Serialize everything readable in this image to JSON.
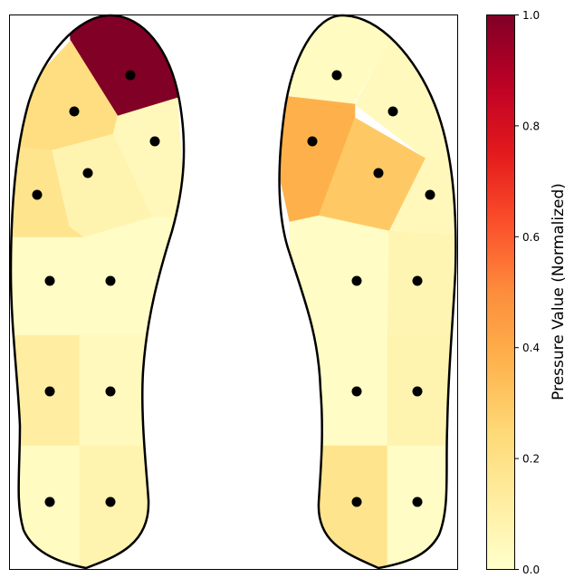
{
  "chart_data": {
    "type": "heatmap",
    "title": "",
    "xlabel": "",
    "ylabel": "",
    "colormap": "YlOrRd",
    "colors": {
      "outline": "#000000",
      "sensor": "#000000",
      "background": "#ffffff"
    },
    "colorbar": {
      "label": "Pressure Value (Normalized)",
      "range": [
        0.0,
        1.0
      ],
      "ticks": [
        "0.0",
        "0.2",
        "0.4",
        "0.6",
        "0.8",
        "1.0"
      ],
      "placement": "right"
    },
    "feet": [
      {
        "name": "left",
        "sensors": [
          {
            "row": 1,
            "col": 2,
            "value": 1.0
          },
          {
            "row": 2,
            "col": 1,
            "value": 0.22
          },
          {
            "row": 3,
            "col": 3,
            "value": 0.05
          },
          {
            "row": 4,
            "col": 2,
            "value": 0.08
          },
          {
            "row": 5,
            "col": 1,
            "value": 0.18
          },
          {
            "row": 6,
            "col": 1,
            "value": 0.02
          },
          {
            "row": 6,
            "col": 2,
            "value": 0.02
          },
          {
            "row": 7,
            "col": 1,
            "value": 0.12
          },
          {
            "row": 7,
            "col": 2,
            "value": 0.04
          },
          {
            "row": 8,
            "col": 1,
            "value": 0.03
          },
          {
            "row": 8,
            "col": 2,
            "value": 0.08
          }
        ]
      },
      {
        "name": "right",
        "sensors": [
          {
            "row": 1,
            "col": 1,
            "value": 0.03
          },
          {
            "row": 2,
            "col": 2,
            "value": 0.04
          },
          {
            "row": 3,
            "col": 1,
            "value": 0.38
          },
          {
            "row": 4,
            "col": 2,
            "value": 0.3
          },
          {
            "row": 5,
            "col": 3,
            "value": 0.05
          },
          {
            "row": 6,
            "col": 1,
            "value": 0.02
          },
          {
            "row": 6,
            "col": 2,
            "value": 0.07
          },
          {
            "row": 7,
            "col": 1,
            "value": 0.02
          },
          {
            "row": 7,
            "col": 2,
            "value": 0.08
          },
          {
            "row": 8,
            "col": 1,
            "value": 0.18
          },
          {
            "row": 8,
            "col": 2,
            "value": 0.02
          }
        ]
      }
    ]
  }
}
